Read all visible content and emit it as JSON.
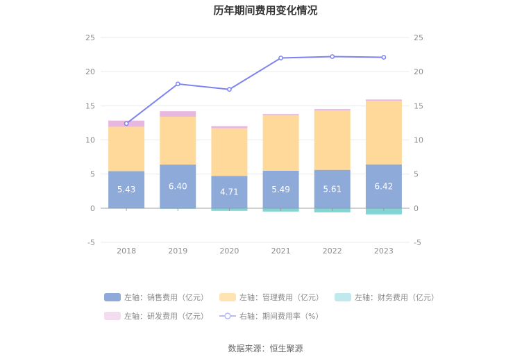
{
  "title": "历年期间费用变化情况",
  "source": "数据来源：恒生聚源",
  "legend": [
    {
      "label": "左轴：销售费用（亿元）",
      "color": "#8eaad8",
      "kind": "bar"
    },
    {
      "label": "左轴：管理费用（亿元）",
      "color": "#ffd99a",
      "kind": "bar"
    },
    {
      "label": "左轴：财务费用（亿元）",
      "color": "#80d6d6",
      "kind": "bar"
    },
    {
      "label": "左轴：研发费用（亿元）",
      "color": "#e7b7e0",
      "kind": "bar"
    },
    {
      "label": "右轴：期间费用率（%）",
      "color": "#7b83ee",
      "kind": "line"
    }
  ],
  "chart_data": {
    "type": "bar",
    "stacked": true,
    "categories": [
      "2018",
      "2019",
      "2020",
      "2021",
      "2022",
      "2023"
    ],
    "series": [
      {
        "name": "左轴：销售费用（亿元）",
        "axis": "left",
        "color": "#8eaad8",
        "values": [
          5.43,
          6.4,
          4.71,
          5.49,
          5.61,
          6.42
        ],
        "labels": [
          "5.43",
          "6.40",
          "4.71",
          "5.49",
          "5.61",
          "6.42"
        ]
      },
      {
        "name": "左轴：管理费用（亿元）",
        "axis": "left",
        "color": "#ffd99a",
        "values": [
          6.5,
          7.0,
          7.0,
          8.1,
          8.7,
          9.3
        ]
      },
      {
        "name": "左轴：财务费用（亿元）",
        "axis": "left",
        "color": "#80d6d6",
        "values": [
          -0.05,
          -0.1,
          -0.4,
          -0.5,
          -0.6,
          -0.9
        ]
      },
      {
        "name": "左轴：研发费用（亿元）",
        "axis": "left",
        "color": "#e7b7e0",
        "values": [
          0.9,
          0.8,
          0.3,
          0.2,
          0.2,
          0.2
        ]
      },
      {
        "name": "右轴：期间费用率（%）",
        "axis": "right",
        "type": "line",
        "color": "#7b83ee",
        "values": [
          12.4,
          18.2,
          17.4,
          22.0,
          22.2,
          22.1
        ]
      }
    ],
    "yticks": [
      "-5",
      "0",
      "5",
      "10",
      "15",
      "20",
      "25"
    ],
    "ylim": [
      -5,
      25
    ],
    "y2ticks": [
      "-5",
      "0",
      "5",
      "10",
      "15",
      "20",
      "25"
    ],
    "y2lim": [
      -5,
      25
    ],
    "grid": true,
    "legend_position": "bottom"
  }
}
